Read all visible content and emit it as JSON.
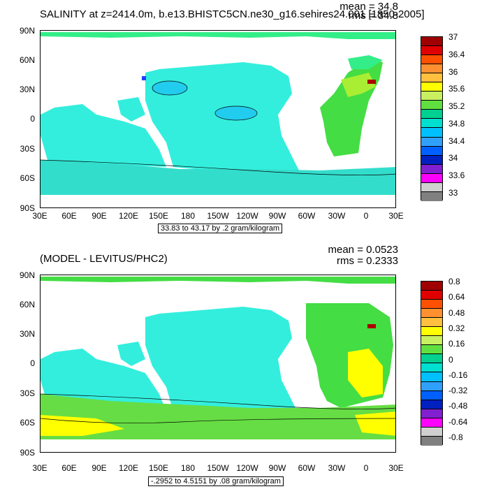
{
  "top": {
    "title": "SALINITY at z=2414.0m, b.e13.BHISTC5CN.ne30_g16.sehires24.001 [1850-2005]",
    "mean": "mean = 34.8",
    "rms": "rms = 34.8",
    "range_text": "33.83 to 43.17 by .2 gram/kilogram",
    "colorbar_labels": [
      "37",
      "36.4",
      "36",
      "35.6",
      "35.2",
      "34.8",
      "34.4",
      "34",
      "33.6",
      "33"
    ],
    "colorbar_colors": [
      "#a00000",
      "#e00000",
      "#ff5000",
      "#ff9030",
      "#ffc040",
      "#ffff00",
      "#c8f060",
      "#60e040",
      "#00d090",
      "#00e0d0",
      "#00c0ff",
      "#30a0ff",
      "#0060ff",
      "#0020c0",
      "#8020d0",
      "#ff00ff",
      "#d0d0d0",
      "#808080"
    ],
    "fill_colors": {
      "pacific": "#33eedd",
      "indian": "#33eedd",
      "southern": "#33ddcc",
      "atlantic": "#44dd44",
      "atlantic_warm": "#aaee33",
      "pacific_low": "#22ccee",
      "north": "#33ee88"
    }
  },
  "bottom": {
    "title": "(MODEL - LEVITUS/PHC2)",
    "mean": "mean = 0.0523",
    "rms": "rms = 0.2333",
    "range_text": "-.2952 to 4.5151 by .08 gram/kilogram",
    "colorbar_labels": [
      "0.8",
      "0.64",
      "0.48",
      "0.32",
      "0.16",
      "0",
      "-0.16",
      "-0.32",
      "-0.48",
      "-0.64",
      "-0.8"
    ],
    "colorbar_colors": [
      "#a00000",
      "#e00000",
      "#ff5000",
      "#ff9030",
      "#ffc040",
      "#ffff00",
      "#c8f060",
      "#60e040",
      "#00d090",
      "#00e0d0",
      "#00c0ff",
      "#30a0ff",
      "#0060ff",
      "#0020c0",
      "#8020d0",
      "#ff00ff",
      "#d0d0d0",
      "#808080"
    ],
    "fill_colors": {
      "pacific": "#33eedd",
      "indian": "#33eedd",
      "southern": "#66dd44",
      "atlantic": "#44dd44",
      "yellow": "#ffff00",
      "north": "#44dd44"
    }
  },
  "axes": {
    "y_ticks": [
      "90N",
      "60N",
      "30N",
      "0",
      "30S",
      "60S",
      "90S"
    ],
    "x_ticks": [
      "30E",
      "60E",
      "90E",
      "120E",
      "150E",
      "180",
      "150W",
      "120W",
      "90W",
      "60W",
      "30W",
      "0",
      "30E"
    ]
  }
}
